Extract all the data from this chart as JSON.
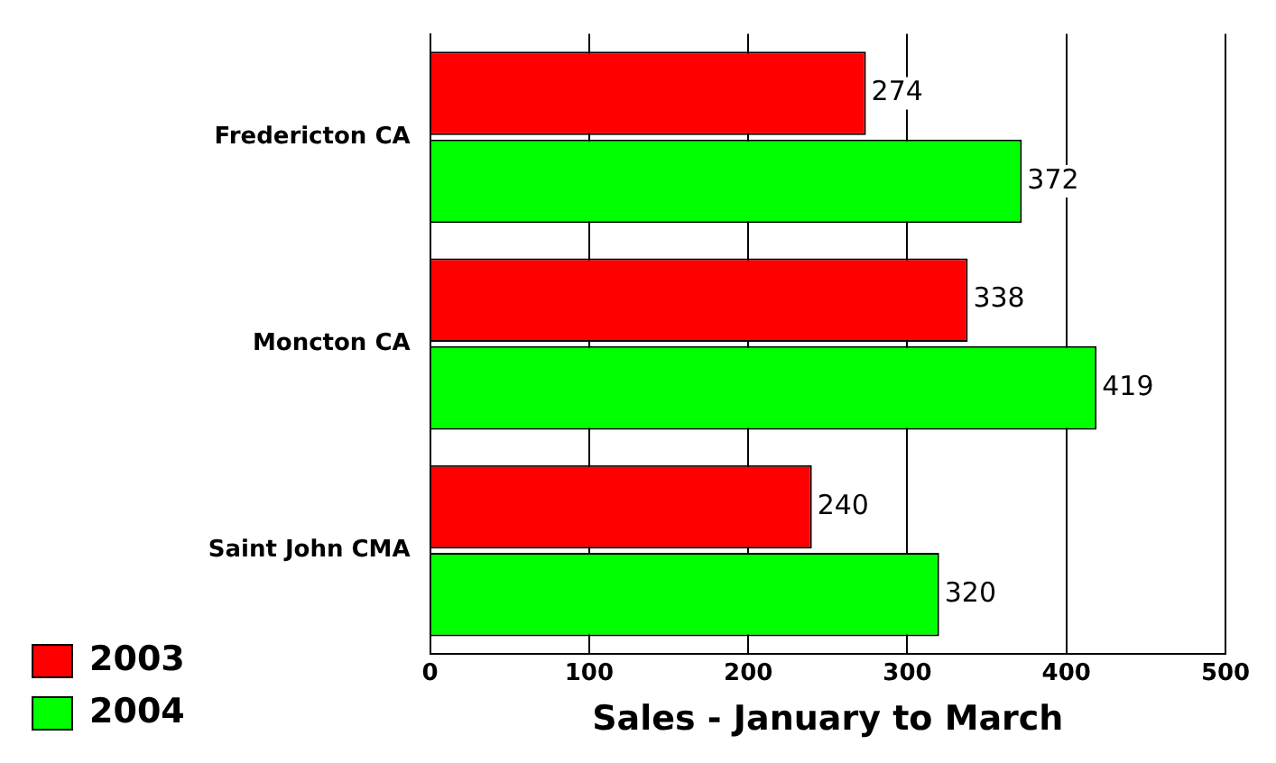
{
  "chart_data": {
    "type": "bar",
    "orientation": "horizontal",
    "xlabel": "Sales - January to March",
    "categories": [
      "Fredericton CA",
      "Moncton CA",
      "Saint John CMA"
    ],
    "series": [
      {
        "name": "2003",
        "color": "#ff0000",
        "values": [
          274,
          338,
          240
        ]
      },
      {
        "name": "2004",
        "color": "#00ff00",
        "values": [
          372,
          419,
          320
        ]
      }
    ],
    "xlim": [
      0,
      500
    ],
    "xticks": [
      0,
      100,
      200,
      300,
      400,
      500
    ],
    "grid": "x",
    "legend": "bottom left",
    "data_labels": true
  }
}
